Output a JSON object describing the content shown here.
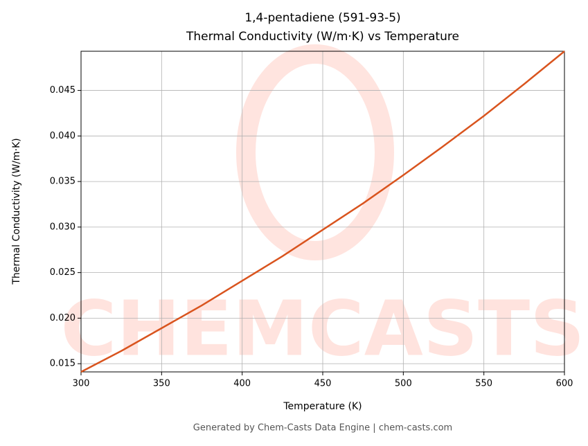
{
  "chart_data": {
    "type": "line",
    "title": "1,4-pentadiene (591-93-5)",
    "subtitle": "Thermal Conductivity (W/m·K) vs Temperature",
    "x_label": "Temperature (K)",
    "y_label": "Thermal Conductivity (W/m·K)",
    "footer": "Generated by Chem-Casts Data Engine | chem-casts.com",
    "watermark": "CHEMCASTS",
    "x": [
      300,
      325,
      350,
      375,
      400,
      425,
      450,
      475,
      500,
      525,
      550,
      575,
      600
    ],
    "series": [
      {
        "name": "Thermal Conductivity",
        "color": "#d9541e",
        "values": [
          0.0141,
          0.0164,
          0.0189,
          0.0214,
          0.0241,
          0.0268,
          0.0297,
          0.0326,
          0.0357,
          0.0389,
          0.0422,
          0.0457,
          0.0493
        ]
      }
    ],
    "xlim": [
      300,
      600
    ],
    "xticks": [
      300,
      350,
      400,
      450,
      500,
      550,
      600
    ],
    "ylim": [
      0.0141,
      0.0493
    ],
    "yticks": [
      {
        "value": 0.015,
        "label": "0.015"
      },
      {
        "value": 0.02,
        "label": "0.020"
      },
      {
        "value": 0.025,
        "label": "0.025"
      },
      {
        "value": 0.03,
        "label": "0.030"
      },
      {
        "value": 0.035,
        "label": "0.035"
      },
      {
        "value": 0.04,
        "label": "0.040"
      },
      {
        "value": 0.045,
        "label": "0.045"
      }
    ],
    "grid": true
  }
}
